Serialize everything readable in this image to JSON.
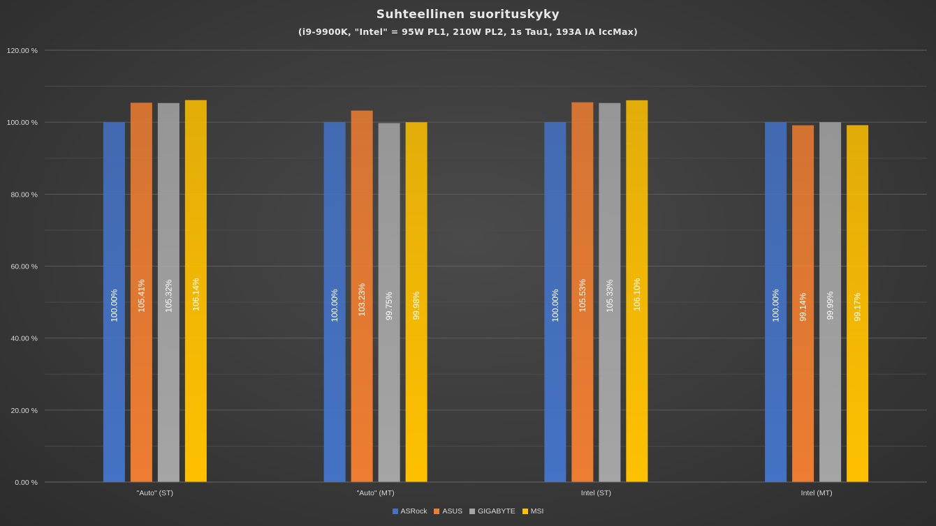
{
  "chart_data": {
    "type": "bar",
    "title": "Suhteellinen suorituskyky",
    "subtitle": "(i9-9900K, \"Intel\" = 95W PL1, 210W PL2, 1s Tau1, 193A IA IccMax)",
    "categories": [
      "\"Auto\" (ST)",
      "\"Auto\" (MT)",
      "Intel (ST)",
      "Intel (MT)"
    ],
    "series": [
      {
        "name": "ASRock",
        "color": "#4472c4",
        "values": [
          100.0,
          100.0,
          100.0,
          100.0
        ],
        "labels": [
          "100.00%",
          "100.00%",
          "100.00%",
          "100.00%"
        ]
      },
      {
        "name": "ASUS",
        "color": "#ed7d31",
        "values": [
          105.41,
          103.23,
          105.53,
          99.14
        ],
        "labels": [
          "105.41%",
          "103.23%",
          "105.53%",
          "99.14%"
        ]
      },
      {
        "name": "GIGABYTE",
        "color": "#a5a5a5",
        "values": [
          105.32,
          99.75,
          105.33,
          99.99
        ],
        "labels": [
          "105.32%",
          "99.75%",
          "105.33%",
          "99.99%"
        ]
      },
      {
        "name": "MSI",
        "color": "#ffc000",
        "values": [
          106.14,
          99.98,
          106.1,
          99.17
        ],
        "labels": [
          "106.14%",
          "99.98%",
          "106.10%",
          "99.17%"
        ]
      }
    ],
    "ylim": [
      0,
      120
    ],
    "yticks": [
      0,
      20,
      40,
      60,
      80,
      100,
      120
    ],
    "ytick_labels": [
      "0.00 %",
      "20.00 %",
      "40.00 %",
      "60.00 %",
      "80.00 %",
      "100.00 %",
      "120.00 %"
    ],
    "grid": true,
    "legend_position": "bottom"
  }
}
